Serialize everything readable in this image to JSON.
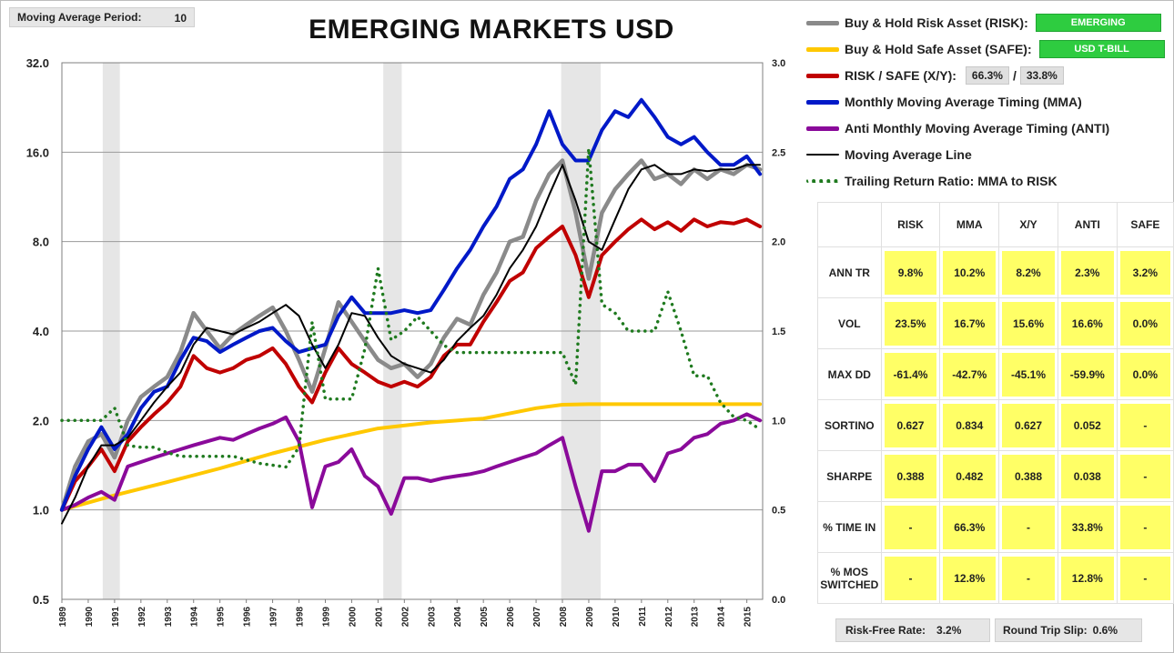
{
  "header": {
    "ma_period_label": "Moving Average Period:",
    "ma_period_value": "10",
    "title": "EMERGING MARKETS USD"
  },
  "legend": {
    "risk_label": "Buy & Hold Risk Asset (RISK):",
    "risk_tag": "EMERGING",
    "safe_label": "Buy & Hold Safe Asset (SAFE):",
    "safe_tag": "USD T-BILL",
    "xy_label": "RISK / SAFE (X/Y):",
    "xy_risk_pct": "66.3%",
    "xy_sep": "/",
    "xy_safe_pct": "33.8%",
    "mma_label": "Monthly Moving Average Timing (MMA)",
    "anti_label": "Anti Monthly Moving Average Timing (ANTI)",
    "ma_line_label": "Moving Average Line",
    "trr_label": "Trailing Return Ratio: MMA to RISK"
  },
  "colors": {
    "risk": "#8a8a8a",
    "safe": "#ffc800",
    "xy": "#c00000",
    "mma": "#0019c8",
    "anti": "#8a0a9a",
    "ma_line": "#000000",
    "trr": "#1f7a1f",
    "recession": "#e6e6e6",
    "highlight": "#ffff66"
  },
  "stats": {
    "columns": [
      "",
      "RISK",
      "MMA",
      "X/Y",
      "ANTI",
      "SAFE"
    ],
    "rows": [
      {
        "label": "ANN TR",
        "values": [
          "9.8%",
          "10.2%",
          "8.2%",
          "2.3%",
          "3.2%"
        ]
      },
      {
        "label": "VOL",
        "values": [
          "23.5%",
          "16.7%",
          "15.6%",
          "16.6%",
          "0.0%"
        ]
      },
      {
        "label": "MAX DD",
        "values": [
          "-61.4%",
          "-42.7%",
          "-45.1%",
          "-59.9%",
          "0.0%"
        ]
      },
      {
        "label": "SORTINO",
        "values": [
          "0.627",
          "0.834",
          "0.627",
          "0.052",
          "-"
        ]
      },
      {
        "label": "SHARPE",
        "values": [
          "0.388",
          "0.482",
          "0.388",
          "0.038",
          "-"
        ]
      },
      {
        "label": "% TIME IN",
        "values": [
          "-",
          "66.3%",
          "-",
          "33.8%",
          "-"
        ]
      },
      {
        "label": "% MOS SWITCHED",
        "values": [
          "-",
          "12.8%",
          "-",
          "12.8%",
          "-"
        ]
      }
    ]
  },
  "footer": {
    "rf_label": "Risk-Free Rate:",
    "rf_value": "3.2%",
    "slip_label": "Round Trip Slip:",
    "slip_value": "0.6%"
  },
  "chart_data": {
    "type": "line",
    "title": "EMERGING MARKETS USD",
    "y_scale": "log2",
    "ylim": [
      0.5,
      32
    ],
    "y_ticks": [
      "0.5",
      "1.0",
      "2.0",
      "4.0",
      "8.0",
      "16.0",
      "32.0"
    ],
    "y2lim": [
      0.0,
      3.0
    ],
    "y2_ticks": [
      "0.0",
      "0.5",
      "1.0",
      "1.5",
      "2.0",
      "2.5",
      "3.0"
    ],
    "xlim": [
      1989,
      2015.6
    ],
    "x_ticks": [
      "1989",
      "1990",
      "1991",
      "1992",
      "1993",
      "1994",
      "1995",
      "1996",
      "1997",
      "1998",
      "1999",
      "2000",
      "2001",
      "2002",
      "2003",
      "2004",
      "2005",
      "2006",
      "2007",
      "2008",
      "2009",
      "2010",
      "2011",
      "2012",
      "2013",
      "2014",
      "2015"
    ],
    "grid": true,
    "recessions": [
      [
        1990.55,
        1991.2
      ],
      [
        2001.2,
        2001.9
      ],
      [
        2007.95,
        2009.45
      ]
    ],
    "series": [
      {
        "name": "Buy & Hold Risk Asset (RISK)",
        "key": "risk",
        "axis": "left",
        "x": [
          1989,
          1989.5,
          1990,
          1990.5,
          1991,
          1991.5,
          1992,
          1992.5,
          1993,
          1993.5,
          1994,
          1994.5,
          1995,
          1995.5,
          1996,
          1996.5,
          1997,
          1997.5,
          1998,
          1998.5,
          1999,
          1999.5,
          2000,
          2000.5,
          2001,
          2001.5,
          2002,
          2002.5,
          2003,
          2003.5,
          2004,
          2004.5,
          2005,
          2005.5,
          2006,
          2006.5,
          2007,
          2007.5,
          2008,
          2008.5,
          2009,
          2009.5,
          2010,
          2010.5,
          2011,
          2011.5,
          2012,
          2012.5,
          2013,
          2013.5,
          2014,
          2014.5,
          2015,
          2015.5
        ],
        "y": [
          1.0,
          1.4,
          1.7,
          1.8,
          1.5,
          2.0,
          2.4,
          2.6,
          2.8,
          3.4,
          4.6,
          4.0,
          3.5,
          3.9,
          4.2,
          4.5,
          4.8,
          4.0,
          3.2,
          2.5,
          3.5,
          5.0,
          4.3,
          3.7,
          3.2,
          3.0,
          3.1,
          2.8,
          3.1,
          3.8,
          4.4,
          4.2,
          5.3,
          6.3,
          8.0,
          8.3,
          11.0,
          13.5,
          15.0,
          10.0,
          6.0,
          10.0,
          12.0,
          13.5,
          15.0,
          13.0,
          13.5,
          12.5,
          14.0,
          13.0,
          14.0,
          13.5,
          14.5,
          14.0
        ]
      },
      {
        "name": "Buy & Hold Safe Asset (SAFE)",
        "key": "safe",
        "axis": "left",
        "x": [
          1989,
          1991,
          1993,
          1995,
          1997,
          1999,
          2001,
          2003,
          2005,
          2007,
          2008,
          2009,
          2012,
          2015.5
        ],
        "y": [
          1.0,
          1.12,
          1.24,
          1.38,
          1.55,
          1.72,
          1.88,
          1.97,
          2.03,
          2.2,
          2.26,
          2.27,
          2.27,
          2.27
        ]
      },
      {
        "name": "RISK / SAFE (X/Y)",
        "key": "xy",
        "axis": "left",
        "x": [
          1989,
          1989.5,
          1990,
          1990.5,
          1991,
          1991.5,
          1992,
          1992.5,
          1993,
          1993.5,
          1994,
          1994.5,
          1995,
          1995.5,
          1996,
          1996.5,
          1997,
          1997.5,
          1998,
          1998.5,
          1999,
          1999.5,
          2000,
          2000.5,
          2001,
          2001.5,
          2002,
          2002.5,
          2003,
          2003.5,
          2004,
          2004.5,
          2005,
          2005.5,
          2006,
          2006.5,
          2007,
          2007.5,
          2008,
          2008.5,
          2009,
          2009.5,
          2010,
          2010.5,
          2011,
          2011.5,
          2012,
          2012.5,
          2013,
          2013.5,
          2014,
          2014.5,
          2015,
          2015.5
        ],
        "y": [
          1.0,
          1.25,
          1.4,
          1.6,
          1.35,
          1.7,
          1.9,
          2.1,
          2.3,
          2.6,
          3.3,
          3.0,
          2.9,
          3.0,
          3.2,
          3.3,
          3.5,
          3.1,
          2.6,
          2.3,
          2.9,
          3.5,
          3.1,
          2.9,
          2.7,
          2.6,
          2.7,
          2.6,
          2.8,
          3.3,
          3.6,
          3.6,
          4.3,
          5.0,
          5.9,
          6.3,
          7.6,
          8.3,
          9.0,
          7.2,
          5.2,
          7.2,
          8.0,
          8.8,
          9.5,
          8.8,
          9.3,
          8.7,
          9.5,
          9.0,
          9.3,
          9.2,
          9.5,
          9.0
        ]
      },
      {
        "name": "Monthly Moving Average Timing (MMA)",
        "key": "mma",
        "axis": "left",
        "x": [
          1989,
          1989.5,
          1990,
          1990.5,
          1991,
          1991.5,
          1992,
          1992.5,
          1993,
          1993.5,
          1994,
          1994.5,
          1995,
          1995.5,
          1996,
          1996.5,
          1997,
          1997.5,
          1998,
          1998.5,
          1999,
          1999.5,
          2000,
          2000.5,
          2001,
          2001.5,
          2002,
          2002.5,
          2003,
          2003.5,
          2004,
          2004.5,
          2005,
          2005.5,
          2006,
          2006.5,
          2007,
          2007.5,
          2008,
          2008.5,
          2009,
          2009.5,
          2010,
          2010.5,
          2011,
          2011.5,
          2012,
          2012.5,
          2013,
          2013.5,
          2014,
          2014.5,
          2015,
          2015.5
        ],
        "y": [
          1.0,
          1.3,
          1.6,
          1.9,
          1.6,
          1.8,
          2.2,
          2.5,
          2.6,
          3.2,
          3.8,
          3.7,
          3.4,
          3.6,
          3.8,
          4.0,
          4.1,
          3.7,
          3.4,
          3.5,
          3.6,
          4.5,
          5.2,
          4.6,
          4.6,
          4.6,
          4.7,
          4.6,
          4.7,
          5.5,
          6.5,
          7.5,
          9.0,
          10.5,
          13.0,
          14.0,
          17.0,
          22.0,
          17.0,
          15.0,
          15.0,
          19.0,
          22.0,
          21.0,
          24.0,
          21.0,
          18.0,
          17.0,
          18.0,
          16.0,
          14.5,
          14.5,
          15.5,
          13.5
        ]
      },
      {
        "name": "Anti Monthly Moving Average Timing (ANTI)",
        "key": "anti",
        "axis": "left",
        "x": [
          1989,
          1989.5,
          1990,
          1990.5,
          1991,
          1991.5,
          1992,
          1992.5,
          1993,
          1993.5,
          1994,
          1994.5,
          1995,
          1995.5,
          1996,
          1996.5,
          1997,
          1997.5,
          1998,
          1998.5,
          1999,
          1999.5,
          2000,
          2000.5,
          2001,
          2001.5,
          2002,
          2002.5,
          2003,
          2003.5,
          2004,
          2004.5,
          2005,
          2005.5,
          2006,
          2006.5,
          2007,
          2007.5,
          2008,
          2008.5,
          2009,
          2009.5,
          2010,
          2010.5,
          2011,
          2011.5,
          2012,
          2012.5,
          2013,
          2013.5,
          2014,
          2014.5,
          2015,
          2015.5
        ],
        "y": [
          1.0,
          1.04,
          1.1,
          1.15,
          1.08,
          1.4,
          1.45,
          1.5,
          1.55,
          1.6,
          1.65,
          1.7,
          1.75,
          1.72,
          1.8,
          1.88,
          1.95,
          2.05,
          1.7,
          1.02,
          1.4,
          1.45,
          1.6,
          1.3,
          1.2,
          0.97,
          1.28,
          1.28,
          1.25,
          1.28,
          1.3,
          1.32,
          1.35,
          1.4,
          1.45,
          1.5,
          1.55,
          1.65,
          1.75,
          1.2,
          0.85,
          1.35,
          1.35,
          1.42,
          1.42,
          1.25,
          1.55,
          1.6,
          1.75,
          1.8,
          1.95,
          2.0,
          2.1,
          2.0
        ]
      },
      {
        "name": "Moving Average Line",
        "key": "ma_line",
        "axis": "left",
        "x": [
          1989,
          1989.5,
          1990,
          1990.5,
          1991,
          1991.5,
          1992,
          1992.5,
          1993,
          1993.5,
          1994,
          1994.5,
          1995,
          1995.5,
          1996,
          1996.5,
          1997,
          1997.5,
          1998,
          1998.5,
          1999,
          1999.5,
          2000,
          2000.5,
          2001,
          2001.5,
          2002,
          2002.5,
          2003,
          2003.5,
          2004,
          2004.5,
          2005,
          2005.5,
          2006,
          2006.5,
          2007,
          2007.5,
          2008,
          2008.5,
          2009,
          2009.5,
          2010,
          2010.5,
          2011,
          2011.5,
          2012,
          2012.5,
          2013,
          2013.5,
          2014,
          2014.5,
          2015,
          2015.5
        ],
        "y": [
          0.9,
          1.1,
          1.4,
          1.65,
          1.65,
          1.75,
          2.0,
          2.3,
          2.6,
          2.9,
          3.6,
          4.1,
          4.0,
          3.9,
          4.1,
          4.3,
          4.6,
          4.9,
          4.5,
          3.6,
          3.0,
          3.6,
          4.6,
          4.5,
          3.8,
          3.3,
          3.1,
          3.0,
          2.9,
          3.2,
          3.7,
          4.1,
          4.5,
          5.3,
          6.5,
          7.5,
          9.0,
          11.5,
          14.5,
          11.0,
          8.0,
          7.5,
          9.5,
          12.0,
          14.0,
          14.5,
          13.5,
          13.5,
          14.0,
          13.8,
          14.0,
          14.0,
          14.5,
          14.5
        ]
      },
      {
        "name": "Trailing Return Ratio: MMA to RISK",
        "key": "trr",
        "axis": "right",
        "x": [
          1989,
          1989.5,
          1990,
          1990.5,
          1991,
          1991.5,
          1992,
          1992.5,
          1993,
          1993.5,
          1994,
          1994.5,
          1995,
          1995.5,
          1996,
          1996.5,
          1997,
          1997.5,
          1998,
          1998.5,
          1999,
          1999.5,
          2000,
          2000.5,
          2001,
          2001.5,
          2002,
          2002.5,
          2003,
          2003.5,
          2004,
          2004.5,
          2005,
          2005.5,
          2006,
          2006.5,
          2007,
          2007.5,
          2008,
          2008.5,
          2009,
          2009.5,
          2010,
          2010.5,
          2011,
          2011.5,
          2012,
          2012.5,
          2013,
          2013.5,
          2014,
          2014.5,
          2015,
          2015.5
        ],
        "y": [
          1.0,
          1.0,
          1.0,
          1.0,
          1.07,
          0.86,
          0.85,
          0.85,
          0.82,
          0.8,
          0.8,
          0.8,
          0.8,
          0.8,
          0.78,
          0.76,
          0.75,
          0.74,
          0.85,
          1.55,
          1.12,
          1.12,
          1.12,
          1.4,
          1.85,
          1.45,
          1.5,
          1.58,
          1.5,
          1.42,
          1.38,
          1.38,
          1.38,
          1.38,
          1.38,
          1.38,
          1.38,
          1.38,
          1.38,
          1.2,
          2.52,
          1.65,
          1.6,
          1.5,
          1.5,
          1.5,
          1.72,
          1.5,
          1.25,
          1.25,
          1.1,
          1.02,
          1.0,
          0.95
        ]
      }
    ]
  }
}
